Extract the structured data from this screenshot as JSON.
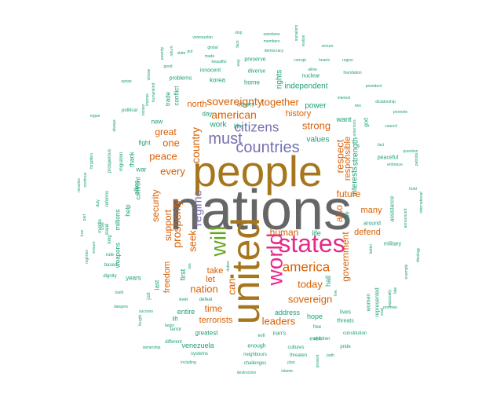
{
  "palette": {
    "teal": "#1b9e77",
    "orange": "#d95f02",
    "purple": "#7570b3",
    "magenta": "#e7298a",
    "green": "#66a61e",
    "gold": "#a6761d",
    "gray": "#666666"
  },
  "words": [
    {
      "text": "nations",
      "color": "gray",
      "weight": 100
    },
    {
      "text": "people",
      "color": "gold",
      "weight": 75
    },
    {
      "text": "united",
      "color": "gold",
      "weight": 60
    },
    {
      "text": "states",
      "color": "magenta",
      "weight": 40
    },
    {
      "text": "world",
      "color": "magenta",
      "weight": 35
    },
    {
      "text": "will",
      "color": "green",
      "weight": 33
    },
    {
      "text": "countries",
      "color": "purple",
      "weight": 26
    },
    {
      "text": "must",
      "color": "purple",
      "weight": 26
    },
    {
      "text": "america",
      "color": "orange",
      "weight": 22
    },
    {
      "text": "citizens",
      "color": "purple",
      "weight": 22
    },
    {
      "text": "regime",
      "color": "purple",
      "weight": 20
    },
    {
      "text": "american",
      "color": "orange",
      "weight": 18
    },
    {
      "text": "prosperity",
      "color": "orange",
      "weight": 18
    },
    {
      "text": "sovereignty",
      "color": "orange",
      "weight": 18
    },
    {
      "text": "together",
      "color": "orange",
      "weight": 16
    },
    {
      "text": "country",
      "color": "orange",
      "weight": 16
    },
    {
      "text": "sovereign",
      "color": "orange",
      "weight": 16
    },
    {
      "text": "today",
      "color": "orange",
      "weight": 16
    },
    {
      "text": "can",
      "color": "orange",
      "weight": 16
    },
    {
      "text": "nation",
      "color": "orange",
      "weight": 15
    },
    {
      "text": "seek",
      "color": "orange",
      "weight": 15
    },
    {
      "text": "strong",
      "color": "orange",
      "weight": 15
    },
    {
      "text": "respect",
      "color": "orange",
      "weight": 14
    },
    {
      "text": "every",
      "color": "orange",
      "weight": 14
    },
    {
      "text": "leaders",
      "color": "orange",
      "weight": 14
    },
    {
      "text": "peace",
      "color": "orange",
      "weight": 14
    },
    {
      "text": "one",
      "color": "orange",
      "weight": 14
    },
    {
      "text": "support",
      "color": "orange",
      "weight": 14
    },
    {
      "text": "time",
      "color": "orange",
      "weight": 14
    },
    {
      "text": "future",
      "color": "orange",
      "weight": 13
    },
    {
      "text": "government",
      "color": "orange",
      "weight": 13
    },
    {
      "text": "human",
      "color": "orange",
      "weight": 13
    },
    {
      "text": "security",
      "color": "orange",
      "weight": 13
    },
    {
      "text": "great",
      "color": "orange",
      "weight": 13
    },
    {
      "text": "terrorists",
      "color": "orange",
      "weight": 12
    },
    {
      "text": "also",
      "color": "orange",
      "weight": 12
    },
    {
      "text": "defend",
      "color": "orange",
      "weight": 12
    },
    {
      "text": "freedom",
      "color": "orange",
      "weight": 12
    },
    {
      "text": "many",
      "color": "orange",
      "weight": 12
    },
    {
      "text": "let",
      "color": "orange",
      "weight": 11
    },
    {
      "text": "take",
      "color": "orange",
      "weight": 11
    },
    {
      "text": "responsible",
      "color": "orange",
      "weight": 11
    },
    {
      "text": "history",
      "color": "orange",
      "weight": 11
    },
    {
      "text": "north",
      "color": "orange",
      "weight": 11
    },
    {
      "text": "values",
      "color": "teal",
      "weight": 10
    },
    {
      "text": "power",
      "color": "teal",
      "weight": 10
    },
    {
      "text": "interests",
      "color": "teal",
      "weight": 10
    },
    {
      "text": "strength",
      "color": "teal",
      "weight": 10
    },
    {
      "text": "independent",
      "color": "teal",
      "weight": 10
    },
    {
      "text": "rights",
      "color": "teal",
      "weight": 9
    },
    {
      "text": "work",
      "color": "teal",
      "weight": 9
    },
    {
      "text": "entire",
      "color": "teal",
      "weight": 9
    },
    {
      "text": "venezuela",
      "color": "teal",
      "weight": 9
    },
    {
      "text": "address",
      "color": "teal",
      "weight": 9
    },
    {
      "text": "hope",
      "color": "teal",
      "weight": 9
    },
    {
      "text": "hall",
      "color": "teal",
      "weight": 9
    },
    {
      "text": "first",
      "color": "teal",
      "weight": 9
    },
    {
      "text": "life",
      "color": "teal",
      "weight": 9
    },
    {
      "text": "want",
      "color": "teal",
      "weight": 9
    },
    {
      "text": "like",
      "color": "teal",
      "weight": 8
    },
    {
      "text": "others",
      "color": "teal",
      "weight": 8
    },
    {
      "text": "korea",
      "color": "teal",
      "weight": 8
    },
    {
      "text": "day",
      "color": "teal",
      "weight": 8
    },
    {
      "text": "home",
      "color": "teal",
      "weight": 8
    },
    {
      "text": "new",
      "color": "teal",
      "weight": 8
    },
    {
      "text": "fight",
      "color": "teal",
      "weight": 8
    },
    {
      "text": "conflict",
      "color": "teal",
      "weight": 8
    },
    {
      "text": "confront",
      "color": "teal",
      "weight": 8
    },
    {
      "text": "trade",
      "color": "teal",
      "weight": 8
    },
    {
      "text": "war",
      "color": "teal",
      "weight": 8
    },
    {
      "text": "thank",
      "color": "teal",
      "weight": 8
    },
    {
      "text": "help",
      "color": "teal",
      "weight": 8
    },
    {
      "text": "millions",
      "color": "teal",
      "weight": 8
    },
    {
      "text": "allies",
      "color": "teal",
      "weight": 8
    },
    {
      "text": "weapons",
      "color": "teal",
      "weight": 8
    },
    {
      "text": "years",
      "color": "teal",
      "weight": 8
    },
    {
      "text": "last",
      "color": "teal",
      "weight": 8
    },
    {
      "text": "greatest",
      "color": "teal",
      "weight": 8
    },
    {
      "text": "lift",
      "color": "teal",
      "weight": 7
    },
    {
      "text": "iran's",
      "color": "teal",
      "weight": 7
    },
    {
      "text": "enough",
      "color": "teal",
      "weight": 7
    },
    {
      "text": "even",
      "color": "teal",
      "weight": 7
    },
    {
      "text": "threats",
      "color": "teal",
      "weight": 7
    },
    {
      "text": "lives",
      "color": "teal",
      "weight": 7
    },
    {
      "text": "safe",
      "color": "teal",
      "weight": 7
    },
    {
      "text": "god",
      "color": "teal",
      "weight": 7
    },
    {
      "text": "around",
      "color": "teal",
      "weight": 7
    },
    {
      "text": "women",
      "color": "teal",
      "weight": 7
    },
    {
      "text": "represented",
      "color": "teal",
      "weight": 7
    },
    {
      "text": "military",
      "color": "teal",
      "weight": 7
    },
    {
      "text": "assistance",
      "color": "teal",
      "weight": 7
    },
    {
      "text": "peaceful",
      "color": "teal",
      "weight": 7
    },
    {
      "text": "nuclear",
      "color": "teal",
      "weight": 7
    },
    {
      "text": "diverse",
      "color": "teal",
      "weight": 7
    },
    {
      "text": "preserve",
      "color": "teal",
      "weight": 7
    },
    {
      "text": "innocent",
      "color": "teal",
      "weight": 7
    },
    {
      "text": "problems",
      "color": "teal",
      "weight": 7
    },
    {
      "text": "political",
      "color": "teal",
      "weight": 6
    },
    {
      "text": "prosperous",
      "color": "teal",
      "weight": 6
    },
    {
      "text": "reforms",
      "color": "teal",
      "weight": 6
    },
    {
      "text": "migration",
      "color": "teal",
      "weight": 6
    },
    {
      "text": "stand",
      "color": "teal",
      "weight": 6
    },
    {
      "text": "rule",
      "color": "teal",
      "weight": 6
    },
    {
      "text": "based",
      "color": "teal",
      "weight": 6
    },
    {
      "text": "long",
      "color": "teal",
      "weight": 6
    },
    {
      "text": "use",
      "color": "teal",
      "weight": 6
    },
    {
      "text": "middle",
      "color": "teal",
      "weight": 6
    },
    {
      "text": "dignity",
      "color": "teal",
      "weight": 6
    },
    {
      "text": "just",
      "color": "teal",
      "weight": 6
    },
    {
      "text": "ever",
      "color": "teal",
      "weight": 6
    },
    {
      "text": "defeat",
      "color": "teal",
      "weight": 6
    },
    {
      "text": "terror",
      "color": "teal",
      "weight": 6
    },
    {
      "text": "different",
      "color": "teal",
      "weight": 6
    },
    {
      "text": "systems",
      "color": "teal",
      "weight": 6
    },
    {
      "text": "neighbours",
      "color": "teal",
      "weight": 6
    },
    {
      "text": "challenges",
      "color": "teal",
      "weight": 6
    },
    {
      "text": "evil",
      "color": "teal",
      "weight": 6
    },
    {
      "text": "threaten",
      "color": "teal",
      "weight": 6
    },
    {
      "text": "cultures",
      "color": "teal",
      "weight": 6
    },
    {
      "text": "children",
      "color": "teal",
      "weight": 6
    },
    {
      "text": "free",
      "color": "teal",
      "weight": 6
    },
    {
      "text": "pride",
      "color": "teal",
      "weight": 6
    },
    {
      "text": "constitution",
      "color": "teal",
      "weight": 6
    },
    {
      "text": "plan",
      "color": "teal",
      "weight": 5
    },
    {
      "text": "path",
      "color": "teal",
      "weight": 5
    },
    {
      "text": "islamic",
      "color": "teal",
      "weight": 5
    },
    {
      "text": "destruction",
      "color": "teal",
      "weight": 5
    },
    {
      "text": "including",
      "color": "teal",
      "weight": 5
    },
    {
      "text": "ownership",
      "color": "teal",
      "weight": 5
    },
    {
      "text": "present",
      "color": "teal",
      "weight": 5
    },
    {
      "text": "live",
      "color": "teal",
      "weight": 5
    },
    {
      "text": "east",
      "color": "teal",
      "weight": 5
    },
    {
      "text": "better",
      "color": "teal",
      "weight": 5
    },
    {
      "text": "promise",
      "color": "teal",
      "weight": 5
    },
    {
      "text": "especially",
      "color": "teal",
      "weight": 5
    },
    {
      "text": "fate",
      "color": "teal",
      "weight": 5
    },
    {
      "text": "example",
      "color": "teal",
      "weight": 5
    },
    {
      "text": "ideology",
      "color": "teal",
      "weight": 5
    },
    {
      "text": "announced",
      "color": "teal",
      "weight": 5
    },
    {
      "text": "hold",
      "color": "teal",
      "weight": 5
    },
    {
      "text": "international",
      "color": "teal",
      "weight": 5
    },
    {
      "text": "embrace",
      "color": "teal",
      "weight": 5
    },
    {
      "text": "question",
      "color": "teal",
      "weight": 5
    },
    {
      "text": "patriots",
      "color": "teal",
      "weight": 5
    },
    {
      "text": "fact",
      "color": "teal",
      "weight": 5
    },
    {
      "text": "council",
      "color": "teal",
      "weight": 5
    },
    {
      "text": "promote",
      "color": "teal",
      "weight": 5
    },
    {
      "text": "dictatorship",
      "color": "teal",
      "weight": 5
    },
    {
      "text": "president",
      "color": "teal",
      "weight": 5
    },
    {
      "text": "two",
      "color": "teal",
      "weight": 5
    },
    {
      "text": "interest",
      "color": "teal",
      "weight": 5
    },
    {
      "text": "america's",
      "color": "teal",
      "weight": 5
    },
    {
      "text": "foundation",
      "color": "teal",
      "weight": 5
    },
    {
      "text": "region",
      "color": "teal",
      "weight": 5
    },
    {
      "text": "hearts",
      "color": "teal",
      "weight": 5
    },
    {
      "text": "secure",
      "color": "teal",
      "weight": 5
    },
    {
      "text": "realize",
      "color": "teal",
      "weight": 5
    },
    {
      "text": "socialism",
      "color": "teal",
      "weight": 5
    },
    {
      "text": "corrupt",
      "color": "teal",
      "weight": 5
    },
    {
      "text": "allow",
      "color": "teal",
      "weight": 5
    },
    {
      "text": "democracy",
      "color": "teal",
      "weight": 5
    },
    {
      "text": "members",
      "color": "teal",
      "weight": 5
    },
    {
      "text": "sanctions",
      "color": "teal",
      "weight": 5
    },
    {
      "text": "stop",
      "color": "teal",
      "weight": 5
    },
    {
      "text": "face",
      "color": "teal",
      "weight": 5
    },
    {
      "text": "way",
      "color": "teal",
      "weight": 5
    },
    {
      "text": "venezuelan",
      "color": "teal",
      "weight": 5
    },
    {
      "text": "global",
      "color": "teal",
      "weight": 5
    },
    {
      "text": "made",
      "color": "teal",
      "weight": 5
    },
    {
      "text": "beautiful",
      "color": "teal",
      "weight": 5
    },
    {
      "text": "put",
      "color": "teal",
      "weight": 5
    },
    {
      "text": "state",
      "color": "teal",
      "weight": 5
    },
    {
      "text": "return",
      "color": "teal",
      "weight": 5
    },
    {
      "text": "poverty",
      "color": "teal",
      "weight": 5
    },
    {
      "text": "good",
      "color": "teal",
      "weight": 5
    },
    {
      "text": "whose",
      "color": "teal",
      "weight": 5
    },
    {
      "text": "humankind",
      "color": "teal",
      "weight": 5
    },
    {
      "text": "impose",
      "color": "teal",
      "weight": 5
    },
    {
      "text": "iranian",
      "color": "teal",
      "weight": 5
    },
    {
      "text": "syrian",
      "color": "teal",
      "weight": 5
    },
    {
      "text": "always",
      "color": "teal",
      "weight": 5
    },
    {
      "text": "rogue",
      "color": "teal",
      "weight": 5
    },
    {
      "text": "forgotten",
      "color": "teal",
      "weight": 5
    },
    {
      "text": "continue",
      "color": "teal",
      "weight": 5
    },
    {
      "text": "missiles",
      "color": "teal",
      "weight": 5
    },
    {
      "text": "duty",
      "color": "teal",
      "weight": 5
    },
    {
      "text": "part",
      "color": "teal",
      "weight": 5
    },
    {
      "text": "true",
      "color": "teal",
      "weight": 5
    },
    {
      "text": "regimes",
      "color": "teal",
      "weight": 5
    },
    {
      "text": "ensure",
      "color": "teal",
      "weight": 5
    },
    {
      "text": "build",
      "color": "teal",
      "weight": 5
    },
    {
      "text": "dangers",
      "color": "teal",
      "weight": 5
    },
    {
      "text": "fought",
      "color": "teal",
      "weight": 5
    },
    {
      "text": "success",
      "color": "teal",
      "weight": 5
    },
    {
      "text": "begin",
      "color": "teal",
      "weight": 5
    },
    {
      "text": "isis",
      "color": "teal",
      "weight": 5
    },
    {
      "text": "duties",
      "color": "teal",
      "weight": 5
    }
  ]
}
